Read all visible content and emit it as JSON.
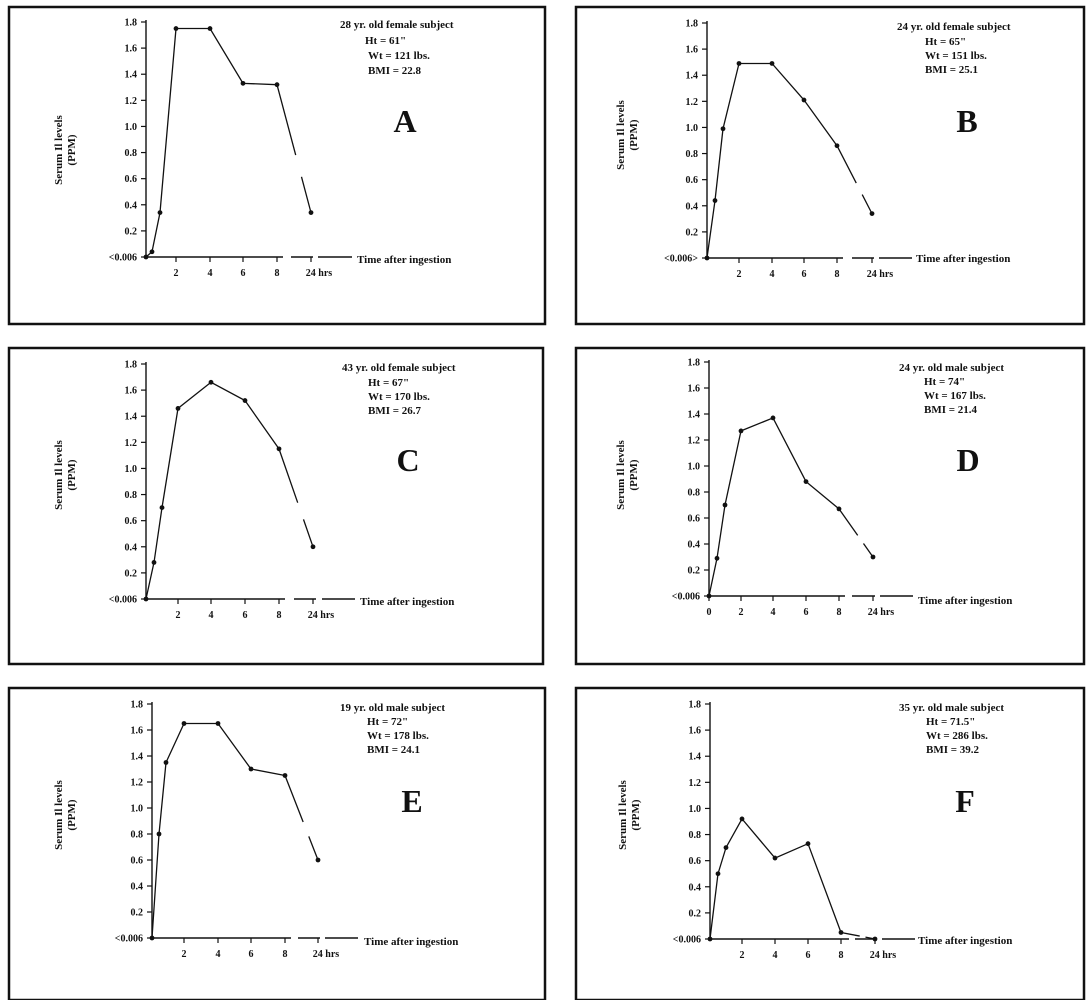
{
  "chart_data": [
    {
      "type": "line",
      "panel_label": "A",
      "subject": {
        "title": "28 yr. old female subject",
        "ht": "Ht = 61\"",
        "wt": "Wt = 121 lbs.",
        "bmi": "BMI = 22.8"
      },
      "ylabel": "Serum Il levels",
      "ylabel_unit": "(PPM)",
      "y_ticks": [
        "<0.006",
        "0.2",
        "0.4",
        "0.6",
        "0.8",
        "1.0",
        "1.2",
        "1.4",
        "1.6",
        "1.8"
      ],
      "ylim": [
        0,
        1.8
      ],
      "x_ticks": [
        "2",
        "4",
        "6",
        "8",
        "24 hrs"
      ],
      "x_title": "Time after ingestion",
      "series": [
        {
          "x": [
            0,
            0.5,
            1,
            2,
            4,
            6,
            8,
            24
          ],
          "y": [
            0,
            0.04,
            0.34,
            1.75,
            1.75,
            1.33,
            1.32,
            0.34
          ]
        }
      ]
    },
    {
      "type": "line",
      "panel_label": "B",
      "subject": {
        "title": "24 yr. old female subject",
        "ht": "Ht = 65\"",
        "wt": "Wt = 151 lbs.",
        "bmi": "BMI = 25.1"
      },
      "ylabel": "Serum Il levels",
      "ylabel_unit": "(PPM)",
      "y_ticks": [
        "<0.006>",
        "0.2",
        "0.4",
        "0.6",
        "0.8",
        "1.0",
        "1.2",
        "1.4",
        "1.6",
        "1.8"
      ],
      "ylim": [
        0,
        1.8
      ],
      "x_ticks": [
        "2",
        "4",
        "6",
        "8",
        "24 hrs"
      ],
      "x_title": "Time after ingestion",
      "series": [
        {
          "x": [
            0,
            0.5,
            1,
            2,
            4,
            6,
            8,
            24
          ],
          "y": [
            0,
            0.44,
            0.99,
            1.49,
            1.49,
            1.21,
            0.86,
            0.34
          ]
        }
      ]
    },
    {
      "type": "line",
      "panel_label": "C",
      "subject": {
        "title": "43 yr. old female subject",
        "ht": "Ht = 67\"",
        "wt": "Wt = 170 lbs.",
        "bmi": "BMI = 26.7"
      },
      "ylabel": "Serum Il levels",
      "ylabel_unit": "(PPM)",
      "y_ticks": [
        "<0.006",
        "0.2",
        "0.4",
        "0.6",
        "0.8",
        "1.0",
        "1.2",
        "1.4",
        "1.6",
        "1.8"
      ],
      "ylim": [
        0,
        1.8
      ],
      "x_ticks": [
        "2",
        "4",
        "6",
        "8",
        "24 hrs"
      ],
      "x_title": "Time after ingestion",
      "series": [
        {
          "x": [
            0,
            0.5,
            1,
            2,
            4,
            6,
            8,
            24
          ],
          "y": [
            0,
            0.28,
            0.7,
            1.46,
            1.66,
            1.52,
            1.15,
            0.4
          ]
        }
      ]
    },
    {
      "type": "line",
      "panel_label": "D",
      "subject": {
        "title": "24 yr. old male subject",
        "ht": "Ht = 74\"",
        "wt": "Wt = 167 lbs.",
        "bmi": "BMI = 21.4"
      },
      "ylabel": "Serum Il levels",
      "ylabel_unit": "(PPM)",
      "y_ticks": [
        "<0.006",
        "0.2",
        "0.4",
        "0.6",
        "0.8",
        "1.0",
        "1.2",
        "1.4",
        "1.6",
        "1.8"
      ],
      "ylim": [
        0,
        1.8
      ],
      "x_ticks": [
        "0",
        "2",
        "4",
        "6",
        "8",
        "24 hrs"
      ],
      "x_title": "Time after ingestion",
      "series": [
        {
          "x": [
            0,
            0.5,
            1,
            2,
            4,
            6,
            8,
            24
          ],
          "y": [
            0,
            0.29,
            0.7,
            1.27,
            1.37,
            0.88,
            0.67,
            0.3
          ]
        }
      ]
    },
    {
      "type": "line",
      "panel_label": "E",
      "subject": {
        "title": "19 yr. old male subject",
        "ht": "Ht = 72\"",
        "wt": "Wt = 178 lbs.",
        "bmi": "BMI = 24.1"
      },
      "ylabel": "Serum Il levels",
      "ylabel_unit": "(PPM)",
      "y_ticks": [
        "<0.006",
        "0.2",
        "0.4",
        "0.6",
        "0.8",
        "1.0",
        "1.2",
        "1.4",
        "1.6",
        "1.8"
      ],
      "ylim": [
        0,
        1.8
      ],
      "x_ticks": [
        "2",
        "4",
        "6",
        "8",
        "24 hrs"
      ],
      "x_title": "Time after ingestion",
      "series": [
        {
          "x": [
            0,
            0.5,
            1,
            2,
            4,
            6,
            8,
            24
          ],
          "y": [
            0,
            0.8,
            1.35,
            1.65,
            1.65,
            1.3,
            1.25,
            0.6
          ]
        }
      ]
    },
    {
      "type": "line",
      "panel_label": "F",
      "subject": {
        "title": "35 yr. old male subject",
        "ht": "Ht = 71.5\"",
        "wt": "Wt = 286 lbs.",
        "bmi": "BMI = 39.2"
      },
      "ylabel": "Serum Il levels",
      "ylabel_unit": "(PPM)",
      "y_ticks": [
        "<0.006",
        "0.2",
        "0.4",
        "0.6",
        "0.8",
        "1.0",
        "1.2",
        "1.4",
        "1.6",
        "1.8"
      ],
      "ylim": [
        0,
        1.8
      ],
      "x_ticks": [
        "2",
        "4",
        "6",
        "8",
        "24 hrs"
      ],
      "x_title": "Time after ingestion",
      "series": [
        {
          "x": [
            0,
            0.5,
            1,
            2,
            4,
            6,
            8,
            24
          ],
          "y": [
            0,
            0.5,
            0.7,
            0.92,
            0.62,
            0.73,
            0.05,
            0.0
          ]
        }
      ]
    }
  ]
}
